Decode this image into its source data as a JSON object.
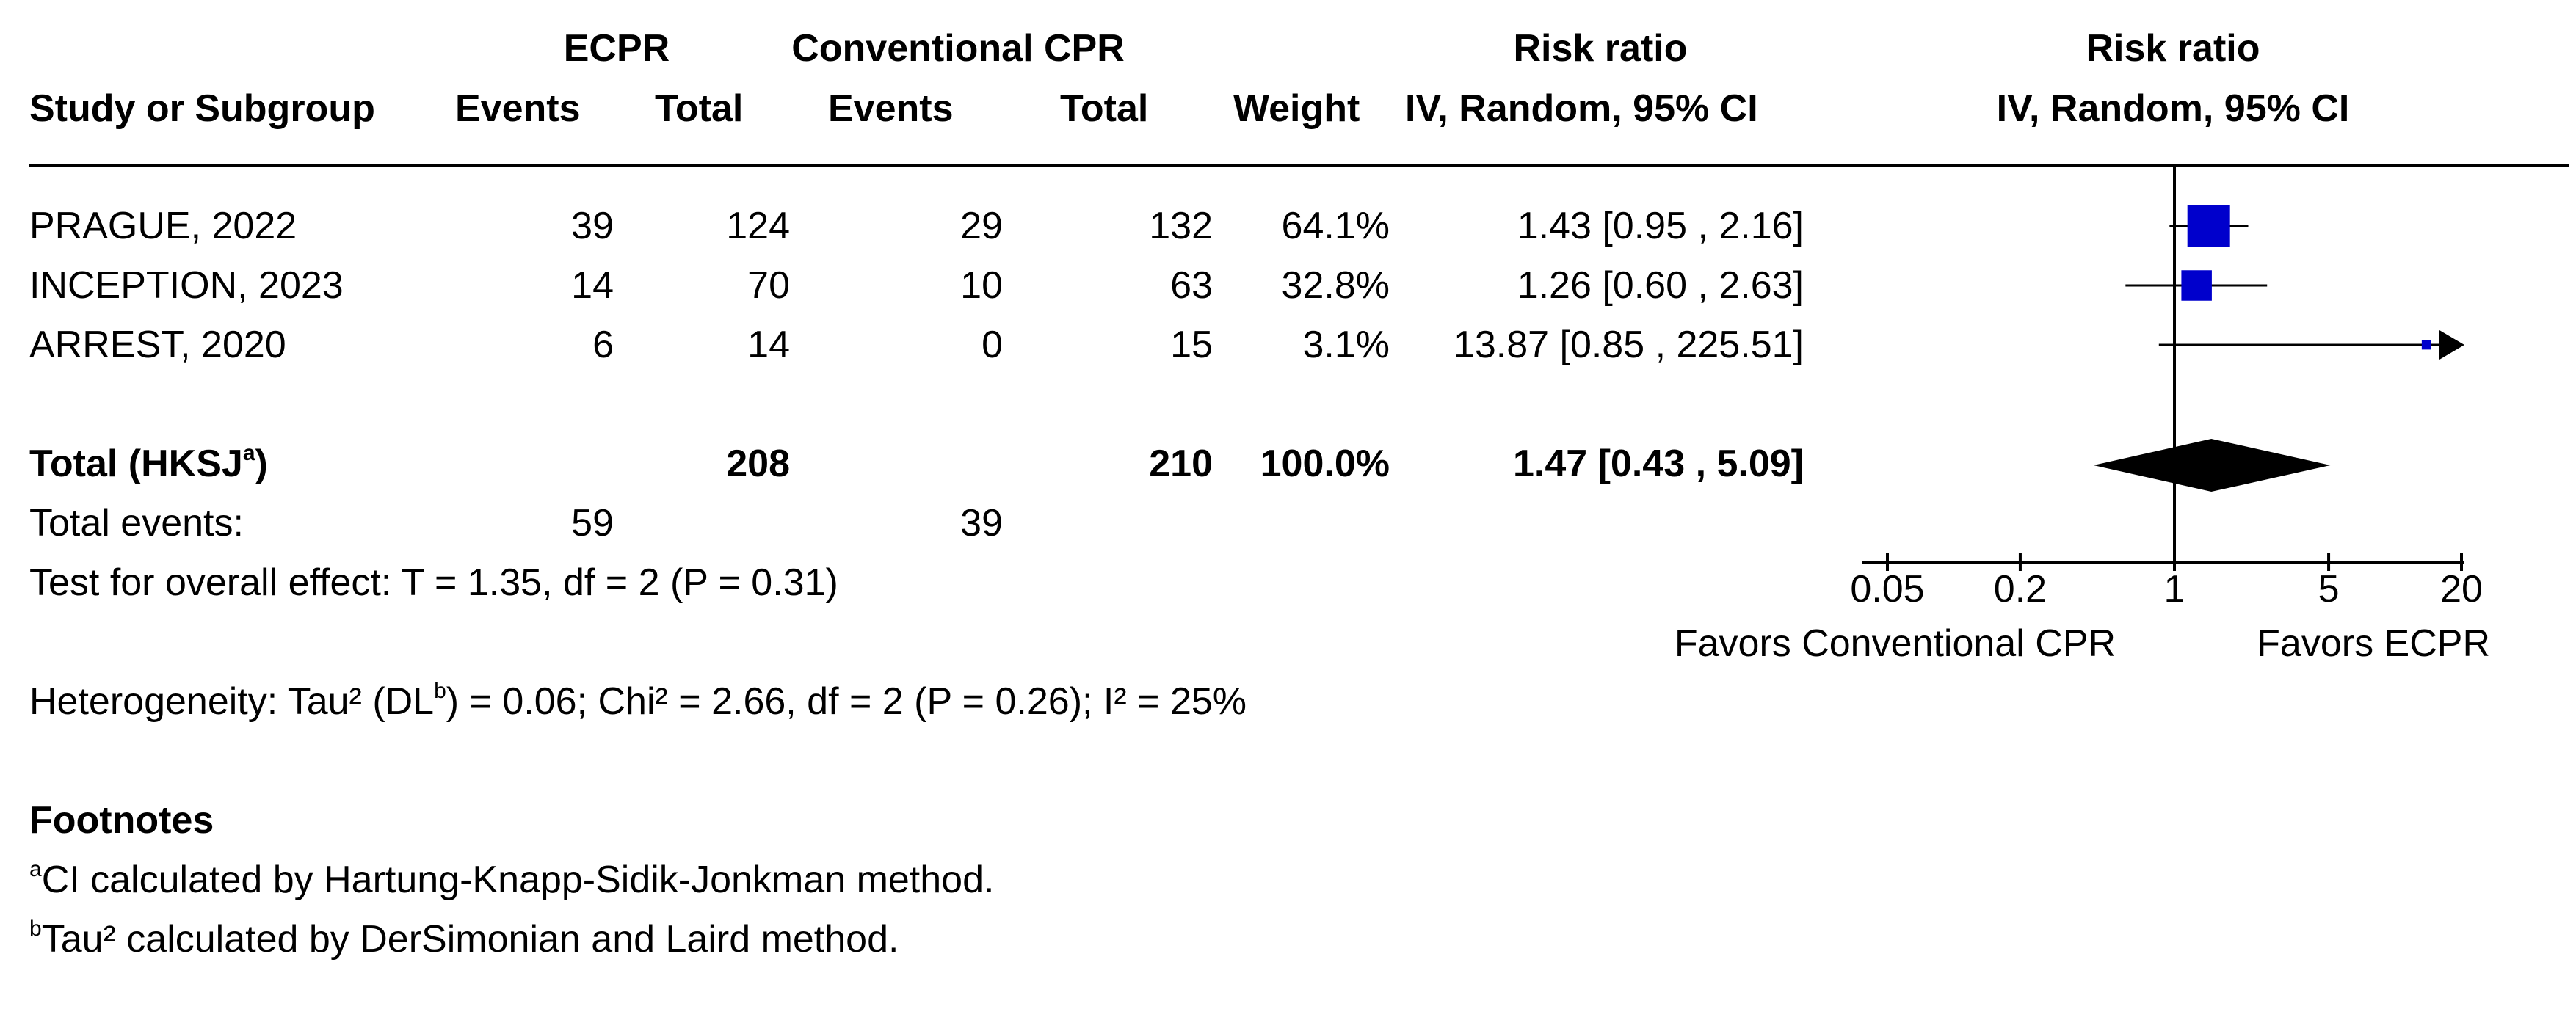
{
  "headers": {
    "group1": "ECPR",
    "group2": "Conventional CPR",
    "rr_col": "Risk ratio",
    "rr_col_sub": "IV, Random, 95% CI",
    "rr_plot": "Risk ratio",
    "rr_plot_sub": "IV, Random, 95% CI",
    "study": "Study or Subgroup",
    "events1": "Events",
    "total1": "Total",
    "events2": "Events",
    "total2": "Total",
    "weight": "Weight"
  },
  "studies": [
    {
      "name": "PRAGUE, 2022",
      "e1": "39",
      "t1": "124",
      "e2": "29",
      "t2": "132",
      "weight": "64.1%",
      "ci_text": "1.43 [0.95 , 2.16]"
    },
    {
      "name": "INCEPTION, 2023",
      "e1": "14",
      "t1": "70",
      "e2": "10",
      "t2": "63",
      "weight": "32.8%",
      "ci_text": "1.26 [0.60 , 2.63]"
    },
    {
      "name": "ARREST, 2020",
      "e1": "6",
      "t1": "14",
      "e2": "0",
      "t2": "15",
      "weight": "3.1%",
      "ci_text": "13.87 [0.85 , 225.51]"
    }
  ],
  "total": {
    "label": "Total (HKSJ",
    "label_sup": "a",
    "label_end": ")",
    "t1": "208",
    "t2": "210",
    "weight": "100.0%",
    "ci_text": "1.47 [0.43 , 5.09]"
  },
  "total_events": {
    "label": "Total events:",
    "e1": "59",
    "e2": "39"
  },
  "overall_effect": "Test for overall effect: T = 1.35, df = 2 (P = 0.31)",
  "heterogeneity": {
    "pre": "Heterogeneity: Tau² (DL",
    "sup": "b",
    "post": ") = 0.06; Chi² = 2.66, df = 2 (P = 0.26); I² = 25%"
  },
  "footnotes": {
    "title": "Footnotes",
    "items": [
      {
        "sup": "a",
        "text": "CI calculated by Hartung-Knapp-Sidik-Jonkman method."
      },
      {
        "sup": "b",
        "text": "Tau² calculated by DerSimonian and Laird method."
      }
    ]
  },
  "axis": {
    "ticks": [
      "0.05",
      "0.2",
      "1",
      "5",
      "20"
    ],
    "favors_left": "Favors Conventional CPR",
    "favors_right": "Favors ECPR"
  },
  "colors": {
    "study_marker": "#0000CC",
    "total_diamond": "#000000"
  },
  "chart_data": {
    "type": "forest",
    "scale": "log",
    "xlim": [
      0.05,
      20
    ],
    "null_value": 1,
    "xlabel_left": "Favors Conventional CPR",
    "xlabel_right": "Favors ECPR",
    "studies": [
      {
        "name": "PRAGUE, 2022",
        "rr": 1.43,
        "lower": 0.95,
        "upper": 2.16,
        "weight": 64.1
      },
      {
        "name": "INCEPTION, 2023",
        "rr": 1.26,
        "lower": 0.6,
        "upper": 2.63,
        "weight": 32.8
      },
      {
        "name": "ARREST, 2020",
        "rr": 13.87,
        "lower": 0.85,
        "upper": 225.51,
        "weight": 3.1,
        "upper_beyond_axis": true
      }
    ],
    "pooled": {
      "name": "Total (HKSJ)",
      "rr": 1.47,
      "lower": 0.43,
      "upper": 5.09,
      "weight": 100.0
    }
  }
}
